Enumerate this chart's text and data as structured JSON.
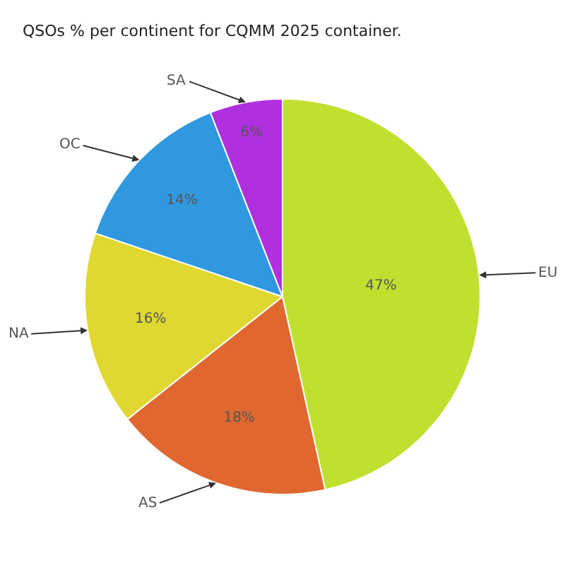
{
  "chart_data": {
    "type": "pie",
    "title": "QSOs % per continent for CQMM 2025 container.",
    "categories": [
      "EU",
      "AS",
      "NA",
      "OC",
      "SA"
    ],
    "values": [
      47,
      18,
      16,
      14,
      6
    ],
    "value_labels": [
      "47%",
      "18%",
      "16%",
      "14%",
      "6%"
    ],
    "colors": [
      "#c0e030",
      "#e06830",
      "#e0d830",
      "#3098e0",
      "#b030e0"
    ],
    "legend": false
  }
}
